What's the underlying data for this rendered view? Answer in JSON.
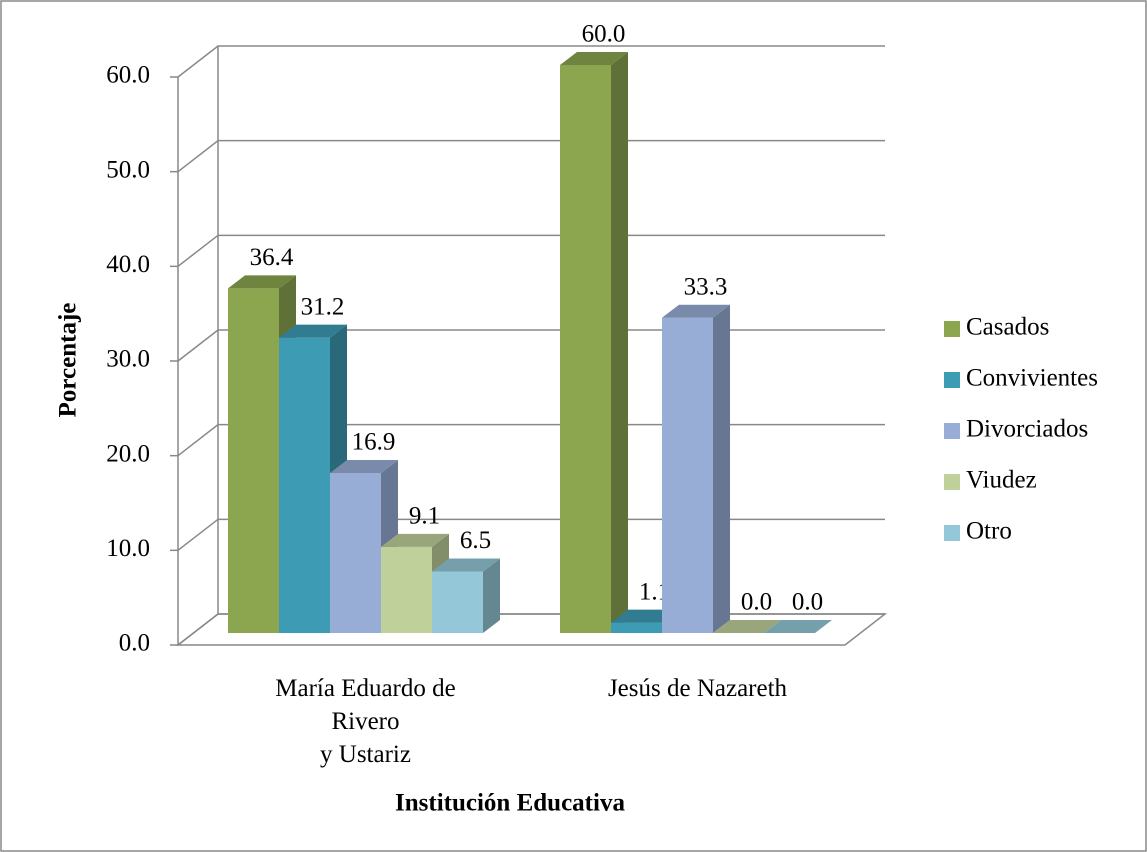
{
  "chart_data": {
    "type": "bar3d",
    "categories": [
      "María Eduardo de\nRivero\ny Ustariz",
      "Jesús de Nazareth"
    ],
    "series": [
      {
        "name": "Casados",
        "color": "#8ba64f",
        "values": [
          36.4,
          60
        ],
        "value_labels": [
          "36.4",
          "60.0"
        ]
      },
      {
        "name": "Convivientes",
        "color": "#3d9bb4",
        "values": [
          31.2,
          1.1
        ],
        "value_labels": [
          "31.2",
          "1.1"
        ]
      },
      {
        "name": "Divorciados",
        "color": "#98add6",
        "values": [
          16.9,
          33.3
        ],
        "value_labels": [
          "16.9",
          "33.3"
        ]
      },
      {
        "name": "Viudez",
        "color": "#bfd09a",
        "values": [
          9.1,
          0
        ],
        "value_labels": [
          "9.1",
          "0.0"
        ]
      },
      {
        "name": "Otro",
        "color": "#94c7d7",
        "values": [
          6.5,
          0
        ],
        "value_labels": [
          "6.5",
          "0.0"
        ]
      }
    ],
    "ylim": [
      0,
      60
    ],
    "yticks": [
      {
        "value": 0,
        "label": "0.0"
      },
      {
        "value": 10,
        "label": "10.0"
      },
      {
        "value": 20,
        "label": "20.0"
      },
      {
        "value": 30,
        "label": "30.0"
      },
      {
        "value": 40,
        "label": "40.0"
      },
      {
        "value": 50,
        "label": "50.0"
      },
      {
        "value": 60,
        "label": "60.0"
      }
    ],
    "ylabel": "Porcentaje",
    "xlabel": "Institución Educativa",
    "grid": true,
    "legend": "right"
  }
}
